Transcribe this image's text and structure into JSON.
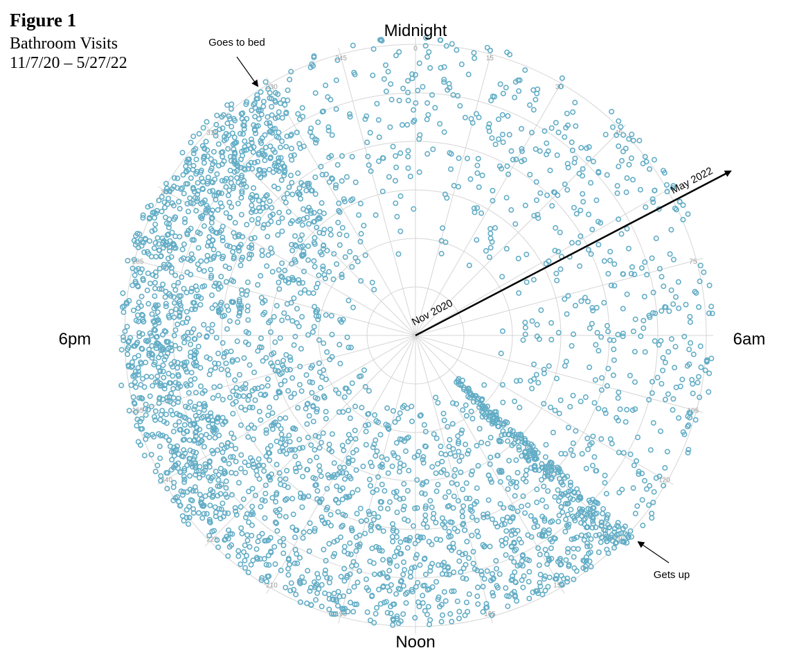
{
  "figure": {
    "label": "Figure 1",
    "title_line1": "Bathroom Visits",
    "title_line2": "11/7/20 – 5/27/22"
  },
  "chart_data": {
    "type": "scatter",
    "coordinate_system": "polar",
    "title": "Bathroom Visits 11/7/20 – 5/27/22",
    "angular_axis": {
      "direction": "clockwise",
      "zero_at": "top",
      "range": [
        0,
        360
      ],
      "tick_labels": [
        "0",
        "15",
        "30",
        "45",
        "75",
        "105",
        "120",
        "135",
        "150",
        "165",
        "195",
        "210",
        "225",
        "240",
        "255",
        "285",
        "300",
        "315",
        "330",
        "345"
      ]
    },
    "cardinal_labels": {
      "top": "Midnight",
      "right": "6am",
      "bottom": "Noon",
      "left": "6pm"
    },
    "radial_axis": {
      "meaning": "date",
      "inner": "Nov 2020",
      "outer": "May 2022"
    },
    "grid": true,
    "annotations": [
      {
        "text": "Goes to bed",
        "points_to_angle": 330
      },
      {
        "text": "Gets up",
        "points_to_angle": 135
      },
      {
        "text": "Nov 2020",
        "along": "radial arrow start"
      },
      {
        "text": "May 2022",
        "along": "radial arrow end"
      }
    ],
    "series_color": "#63adc6",
    "point_density_description": "dense between ~130 and ~330 (afternoon/evening), sparse between ~330 and ~130 (night/early morning); leading edge near 135 increases with date",
    "sample_points": [
      {
        "angle": 140,
        "r": 0.85
      },
      {
        "angle": 150,
        "r": 0.9
      },
      {
        "angle": 165,
        "r": 0.8
      },
      {
        "angle": 195,
        "r": 0.95
      },
      {
        "angle": 210,
        "r": 0.7
      },
      {
        "angle": 225,
        "r": 0.6
      },
      {
        "angle": 240,
        "r": 0.85
      },
      {
        "angle": 255,
        "r": 0.5
      },
      {
        "angle": 270,
        "r": 0.9
      },
      {
        "angle": 285,
        "r": 0.75
      },
      {
        "angle": 300,
        "r": 0.65
      },
      {
        "angle": 315,
        "r": 0.8
      },
      {
        "angle": 330,
        "r": 0.55
      },
      {
        "angle": 15,
        "r": 0.85
      },
      {
        "angle": 45,
        "r": 0.7
      },
      {
        "angle": 75,
        "r": 0.9
      },
      {
        "angle": 105,
        "r": 0.95
      }
    ]
  }
}
